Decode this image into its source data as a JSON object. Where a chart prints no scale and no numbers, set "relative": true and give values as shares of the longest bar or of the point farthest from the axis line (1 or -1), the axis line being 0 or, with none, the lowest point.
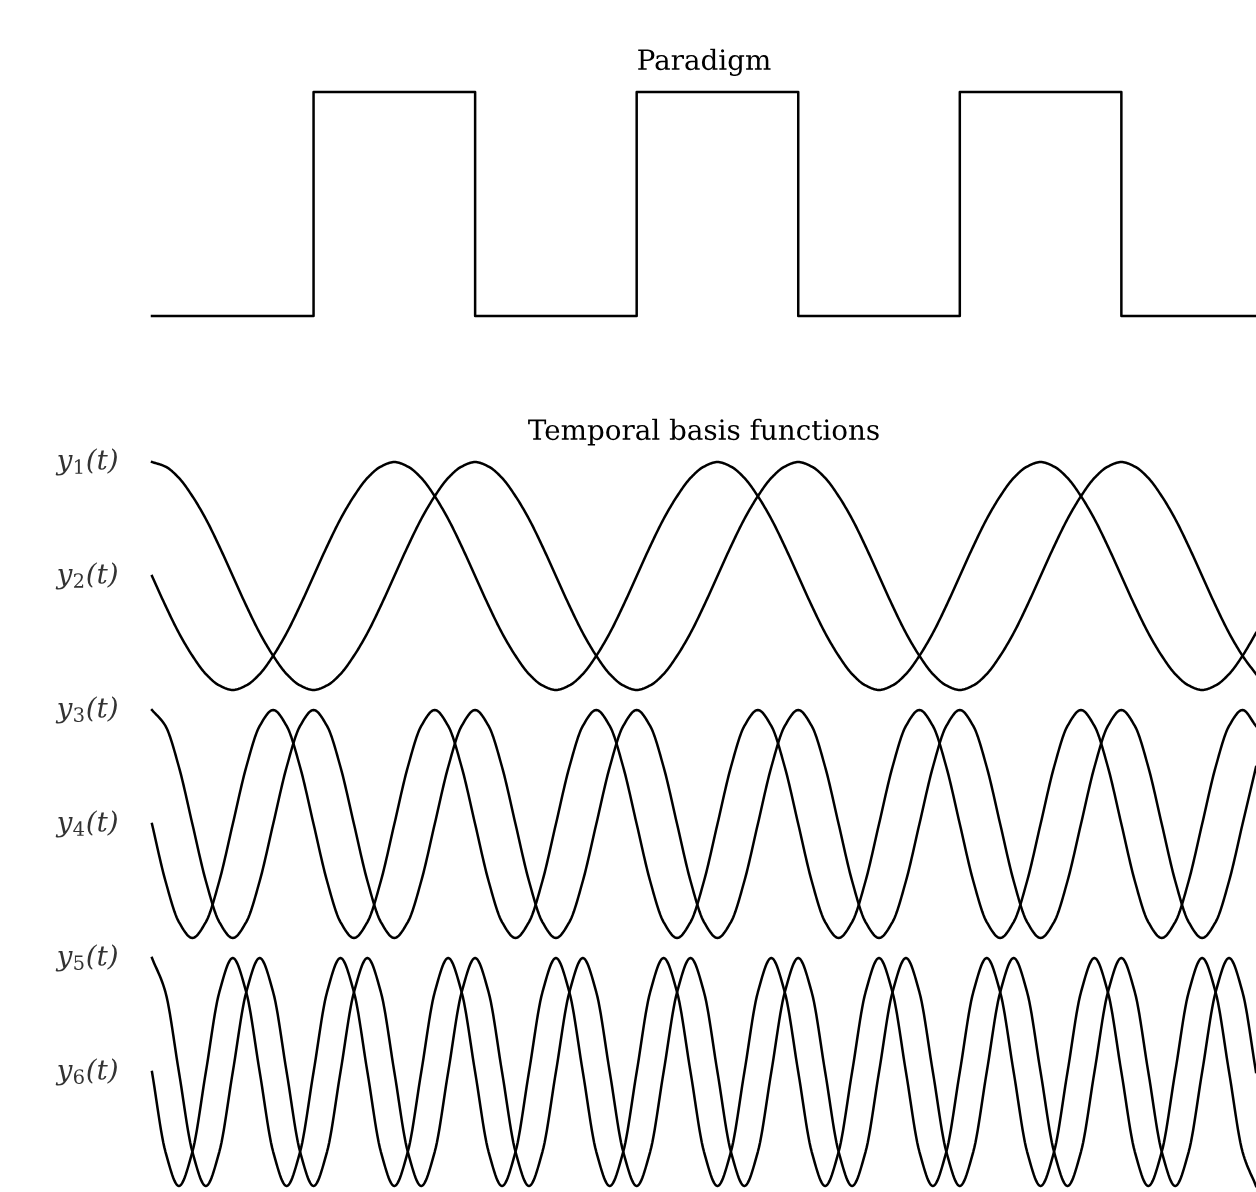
{
  "chart_data": [
    {
      "type": "step",
      "title": "Paradigm",
      "relative": true,
      "legend": false,
      "categories": [
        null,
        null,
        null,
        null,
        null,
        null,
        null,
        null,
        null,
        null,
        null,
        null,
        null,
        null,
        null,
        null,
        null,
        null,
        null,
        null,
        null,
        null,
        null,
        null,
        null,
        null,
        null,
        null,
        null,
        null,
        null,
        null,
        null,
        null,
        null,
        null,
        null,
        null,
        null,
        null,
        null,
        null,
        null,
        null,
        null,
        null,
        null,
        null,
        null,
        null,
        null,
        null,
        null,
        null,
        null,
        null,
        null,
        null,
        null,
        null,
        null,
        null,
        null,
        null,
        null,
        null,
        null,
        null,
        null,
        null,
        null,
        null,
        null,
        null,
        null,
        null,
        null,
        null,
        null,
        null,
        null,
        null,
        null
      ],
      "series": [
        {
          "color": "#000000",
          "values": [
            0,
            0,
            0,
            0,
            0,
            0,
            0,
            0,
            0,
            0,
            0,
            0,
            1,
            1,
            1,
            1,
            1,
            1,
            1,
            1,
            1,
            1,
            1,
            1,
            0,
            0,
            0,
            0,
            0,
            0,
            0,
            0,
            0,
            0,
            0,
            0,
            1,
            1,
            1,
            1,
            1,
            1,
            1,
            1,
            1,
            1,
            1,
            1,
            0,
            0,
            0,
            0,
            0,
            0,
            0,
            0,
            0,
            0,
            0,
            0,
            1,
            1,
            1,
            1,
            1,
            1,
            1,
            1,
            1,
            1,
            1,
            1,
            0,
            0,
            0,
            0,
            0,
            0,
            0,
            0,
            0,
            0,
            0
          ]
        }
      ]
    },
    {
      "type": "line",
      "title": "Temporal basis functions",
      "relative": true,
      "legend": false,
      "categories": [
        null,
        null,
        null,
        null,
        null,
        null,
        null,
        null,
        null,
        null,
        null,
        null,
        null,
        null,
        null,
        null,
        null,
        null,
        null,
        null,
        null,
        null,
        null,
        null,
        null,
        null,
        null,
        null,
        null,
        null,
        null,
        null,
        null,
        null,
        null,
        null,
        null,
        null,
        null,
        null,
        null,
        null,
        null,
        null,
        null,
        null,
        null,
        null,
        null,
        null,
        null,
        null,
        null,
        null,
        null,
        null,
        null,
        null,
        null,
        null,
        null,
        null,
        null,
        null,
        null,
        null,
        null,
        null,
        null,
        null,
        null,
        null,
        null,
        null,
        null,
        null,
        null,
        null,
        null,
        null,
        null,
        null,
        null
      ],
      "series": [
        {
          "name": "y$_{1}$(t)",
          "color": "#000000",
          "values": [
            1,
            0.98,
            0.93,
            0.85,
            0.75,
            0.63,
            0.5,
            0.37,
            0.25,
            0.15,
            0.07,
            0.02,
            0,
            0.02,
            0.07,
            0.15,
            0.25,
            0.37,
            0.5,
            0.63,
            0.75,
            0.85,
            0.93,
            0.98,
            1,
            0.98,
            0.93,
            0.85,
            0.75,
            0.63,
            0.5,
            0.37,
            0.25,
            0.15,
            0.07,
            0.02,
            0,
            0.02,
            0.07,
            0.15,
            0.25,
            0.37,
            0.5,
            0.63,
            0.75,
            0.85,
            0.93,
            0.98,
            1,
            0.98,
            0.93,
            0.85,
            0.75,
            0.63,
            0.5,
            0.37,
            0.25,
            0.15,
            0.07,
            0.02,
            0,
            0.02,
            0.07,
            0.15,
            0.25,
            0.37,
            0.5,
            0.63,
            0.75,
            0.85,
            0.93,
            0.98,
            1,
            0.98,
            0.93,
            0.85,
            0.75,
            0.63,
            0.5,
            0.37,
            0.25,
            0.15,
            0.07
          ]
        },
        {
          "name": "y$_{2}$(t)",
          "color": "#000000",
          "values": [
            0.5,
            0.37,
            0.25,
            0.15,
            0.07,
            0.02,
            0,
            0.02,
            0.07,
            0.15,
            0.25,
            0.37,
            0.5,
            0.63,
            0.75,
            0.85,
            0.93,
            0.98,
            1,
            0.98,
            0.93,
            0.85,
            0.75,
            0.63,
            0.5,
            0.37,
            0.25,
            0.15,
            0.07,
            0.02,
            0,
            0.02,
            0.07,
            0.15,
            0.25,
            0.37,
            0.5,
            0.63,
            0.75,
            0.85,
            0.93,
            0.98,
            1,
            0.98,
            0.93,
            0.85,
            0.75,
            0.63,
            0.5,
            0.37,
            0.25,
            0.15,
            0.07,
            0.02,
            0,
            0.02,
            0.07,
            0.15,
            0.25,
            0.37,
            0.5,
            0.63,
            0.75,
            0.85,
            0.93,
            0.98,
            1,
            0.98,
            0.93,
            0.85,
            0.75,
            0.63,
            0.5,
            0.37,
            0.25,
            0.15,
            0.07,
            0.02,
            0,
            0.02,
            0.07,
            0.15,
            0.25
          ]
        }
      ]
    },
    {
      "type": "line",
      "relative": true,
      "legend": false,
      "categories": [
        null,
        null,
        null,
        null,
        null,
        null,
        null,
        null,
        null,
        null,
        null,
        null,
        null,
        null,
        null,
        null,
        null,
        null,
        null,
        null,
        null,
        null,
        null,
        null,
        null,
        null,
        null,
        null,
        null,
        null,
        null,
        null,
        null,
        null,
        null,
        null,
        null,
        null,
        null,
        null,
        null,
        null,
        null,
        null,
        null,
        null,
        null,
        null,
        null,
        null,
        null,
        null,
        null,
        null,
        null,
        null,
        null,
        null,
        null,
        null,
        null,
        null,
        null,
        null,
        null,
        null,
        null,
        null,
        null,
        null,
        null,
        null,
        null,
        null,
        null,
        null,
        null,
        null,
        null,
        null,
        null,
        null,
        null
      ],
      "series": [
        {
          "name": "y$_{3}$(t)",
          "color": "#000000",
          "values": [
            1,
            0.93,
            0.75,
            0.5,
            0.25,
            0.07,
            0,
            0.07,
            0.25,
            0.5,
            0.75,
            0.93,
            1,
            0.93,
            0.75,
            0.5,
            0.25,
            0.07,
            0,
            0.07,
            0.25,
            0.5,
            0.75,
            0.93,
            1,
            0.93,
            0.75,
            0.5,
            0.25,
            0.07,
            0,
            0.07,
            0.25,
            0.5,
            0.75,
            0.93,
            1,
            0.93,
            0.75,
            0.5,
            0.25,
            0.07,
            0,
            0.07,
            0.25,
            0.5,
            0.75,
            0.93,
            1,
            0.93,
            0.75,
            0.5,
            0.25,
            0.07,
            0,
            0.07,
            0.25,
            0.5,
            0.75,
            0.93,
            1,
            0.93,
            0.75,
            0.5,
            0.25,
            0.07,
            0,
            0.07,
            0.25,
            0.5,
            0.75,
            0.93,
            1,
            0.93,
            0.75,
            0.5,
            0.25,
            0.07,
            0,
            0.07,
            0.25,
            0.5,
            0.75
          ]
        },
        {
          "name": "y$_{4}$(t)",
          "color": "#000000",
          "values": [
            0.5,
            0.25,
            0.07,
            0,
            0.07,
            0.25,
            0.5,
            0.75,
            0.93,
            1,
            0.93,
            0.75,
            0.5,
            0.25,
            0.07,
            0,
            0.07,
            0.25,
            0.5,
            0.75,
            0.93,
            1,
            0.93,
            0.75,
            0.5,
            0.25,
            0.07,
            0,
            0.07,
            0.25,
            0.5,
            0.75,
            0.93,
            1,
            0.93,
            0.75,
            0.5,
            0.25,
            0.07,
            0,
            0.07,
            0.25,
            0.5,
            0.75,
            0.93,
            1,
            0.93,
            0.75,
            0.5,
            0.25,
            0.07,
            0,
            0.07,
            0.25,
            0.5,
            0.75,
            0.93,
            1,
            0.93,
            0.75,
            0.5,
            0.25,
            0.07,
            0,
            0.07,
            0.25,
            0.5,
            0.75,
            0.93,
            1,
            0.93,
            0.75,
            0.5,
            0.25,
            0.07,
            0,
            0.07,
            0.25,
            0.5,
            0.75,
            0.93,
            1,
            0.93
          ]
        }
      ]
    },
    {
      "type": "line",
      "relative": true,
      "legend": false,
      "categories": [
        null,
        null,
        null,
        null,
        null,
        null,
        null,
        null,
        null,
        null,
        null,
        null,
        null,
        null,
        null,
        null,
        null,
        null,
        null,
        null,
        null,
        null,
        null,
        null,
        null,
        null,
        null,
        null,
        null,
        null,
        null,
        null,
        null,
        null,
        null,
        null,
        null,
        null,
        null,
        null,
        null,
        null,
        null,
        null,
        null,
        null,
        null,
        null,
        null,
        null,
        null,
        null,
        null,
        null,
        null,
        null,
        null,
        null,
        null,
        null,
        null,
        null,
        null,
        null,
        null,
        null,
        null,
        null,
        null,
        null,
        null,
        null,
        null,
        null,
        null,
        null,
        null,
        null,
        null,
        null,
        null,
        null,
        null
      ],
      "series": [
        {
          "name": "y$_{5}$(t)",
          "color": "#000000",
          "values": [
            1,
            0.85,
            0.5,
            0.15,
            0,
            0.15,
            0.5,
            0.85,
            1,
            0.85,
            0.5,
            0.15,
            0,
            0.15,
            0.5,
            0.85,
            1,
            0.85,
            0.5,
            0.15,
            0,
            0.15,
            0.5,
            0.85,
            1,
            0.85,
            0.5,
            0.15,
            0,
            0.15,
            0.5,
            0.85,
            1,
            0.85,
            0.5,
            0.15,
            0,
            0.15,
            0.5,
            0.85,
            1,
            0.85,
            0.5,
            0.15,
            0,
            0.15,
            0.5,
            0.85,
            1,
            0.85,
            0.5,
            0.15,
            0,
            0.15,
            0.5,
            0.85,
            1,
            0.85,
            0.5,
            0.15,
            0,
            0.15,
            0.5,
            0.85,
            1,
            0.85,
            0.5,
            0.15,
            0,
            0.15,
            0.5,
            0.85,
            1,
            0.85,
            0.5,
            0.15,
            0,
            0.15,
            0.5,
            0.85,
            1,
            0.85,
            0.5
          ]
        },
        {
          "name": "y$_{6}$(t)",
          "color": "#000000",
          "values": [
            0.5,
            0.15,
            0,
            0.15,
            0.5,
            0.85,
            1,
            0.85,
            0.5,
            0.15,
            0,
            0.15,
            0.5,
            0.85,
            1,
            0.85,
            0.5,
            0.15,
            0,
            0.15,
            0.5,
            0.85,
            1,
            0.85,
            0.5,
            0.15,
            0,
            0.15,
            0.5,
            0.85,
            1,
            0.85,
            0.5,
            0.15,
            0,
            0.15,
            0.5,
            0.85,
            1,
            0.85,
            0.5,
            0.15,
            0,
            0.15,
            0.5,
            0.85,
            1,
            0.85,
            0.5,
            0.15,
            0,
            0.15,
            0.5,
            0.85,
            1,
            0.85,
            0.5,
            0.15,
            0,
            0.15,
            0.5,
            0.85,
            1,
            0.85,
            0.5,
            0.15,
            0,
            0.15,
            0.5,
            0.85,
            1,
            0.85,
            0.5,
            0.15,
            0,
            0.15,
            0.5,
            0.85,
            1,
            0.85,
            0.5,
            0.15,
            0
          ]
        }
      ]
    }
  ]
}
